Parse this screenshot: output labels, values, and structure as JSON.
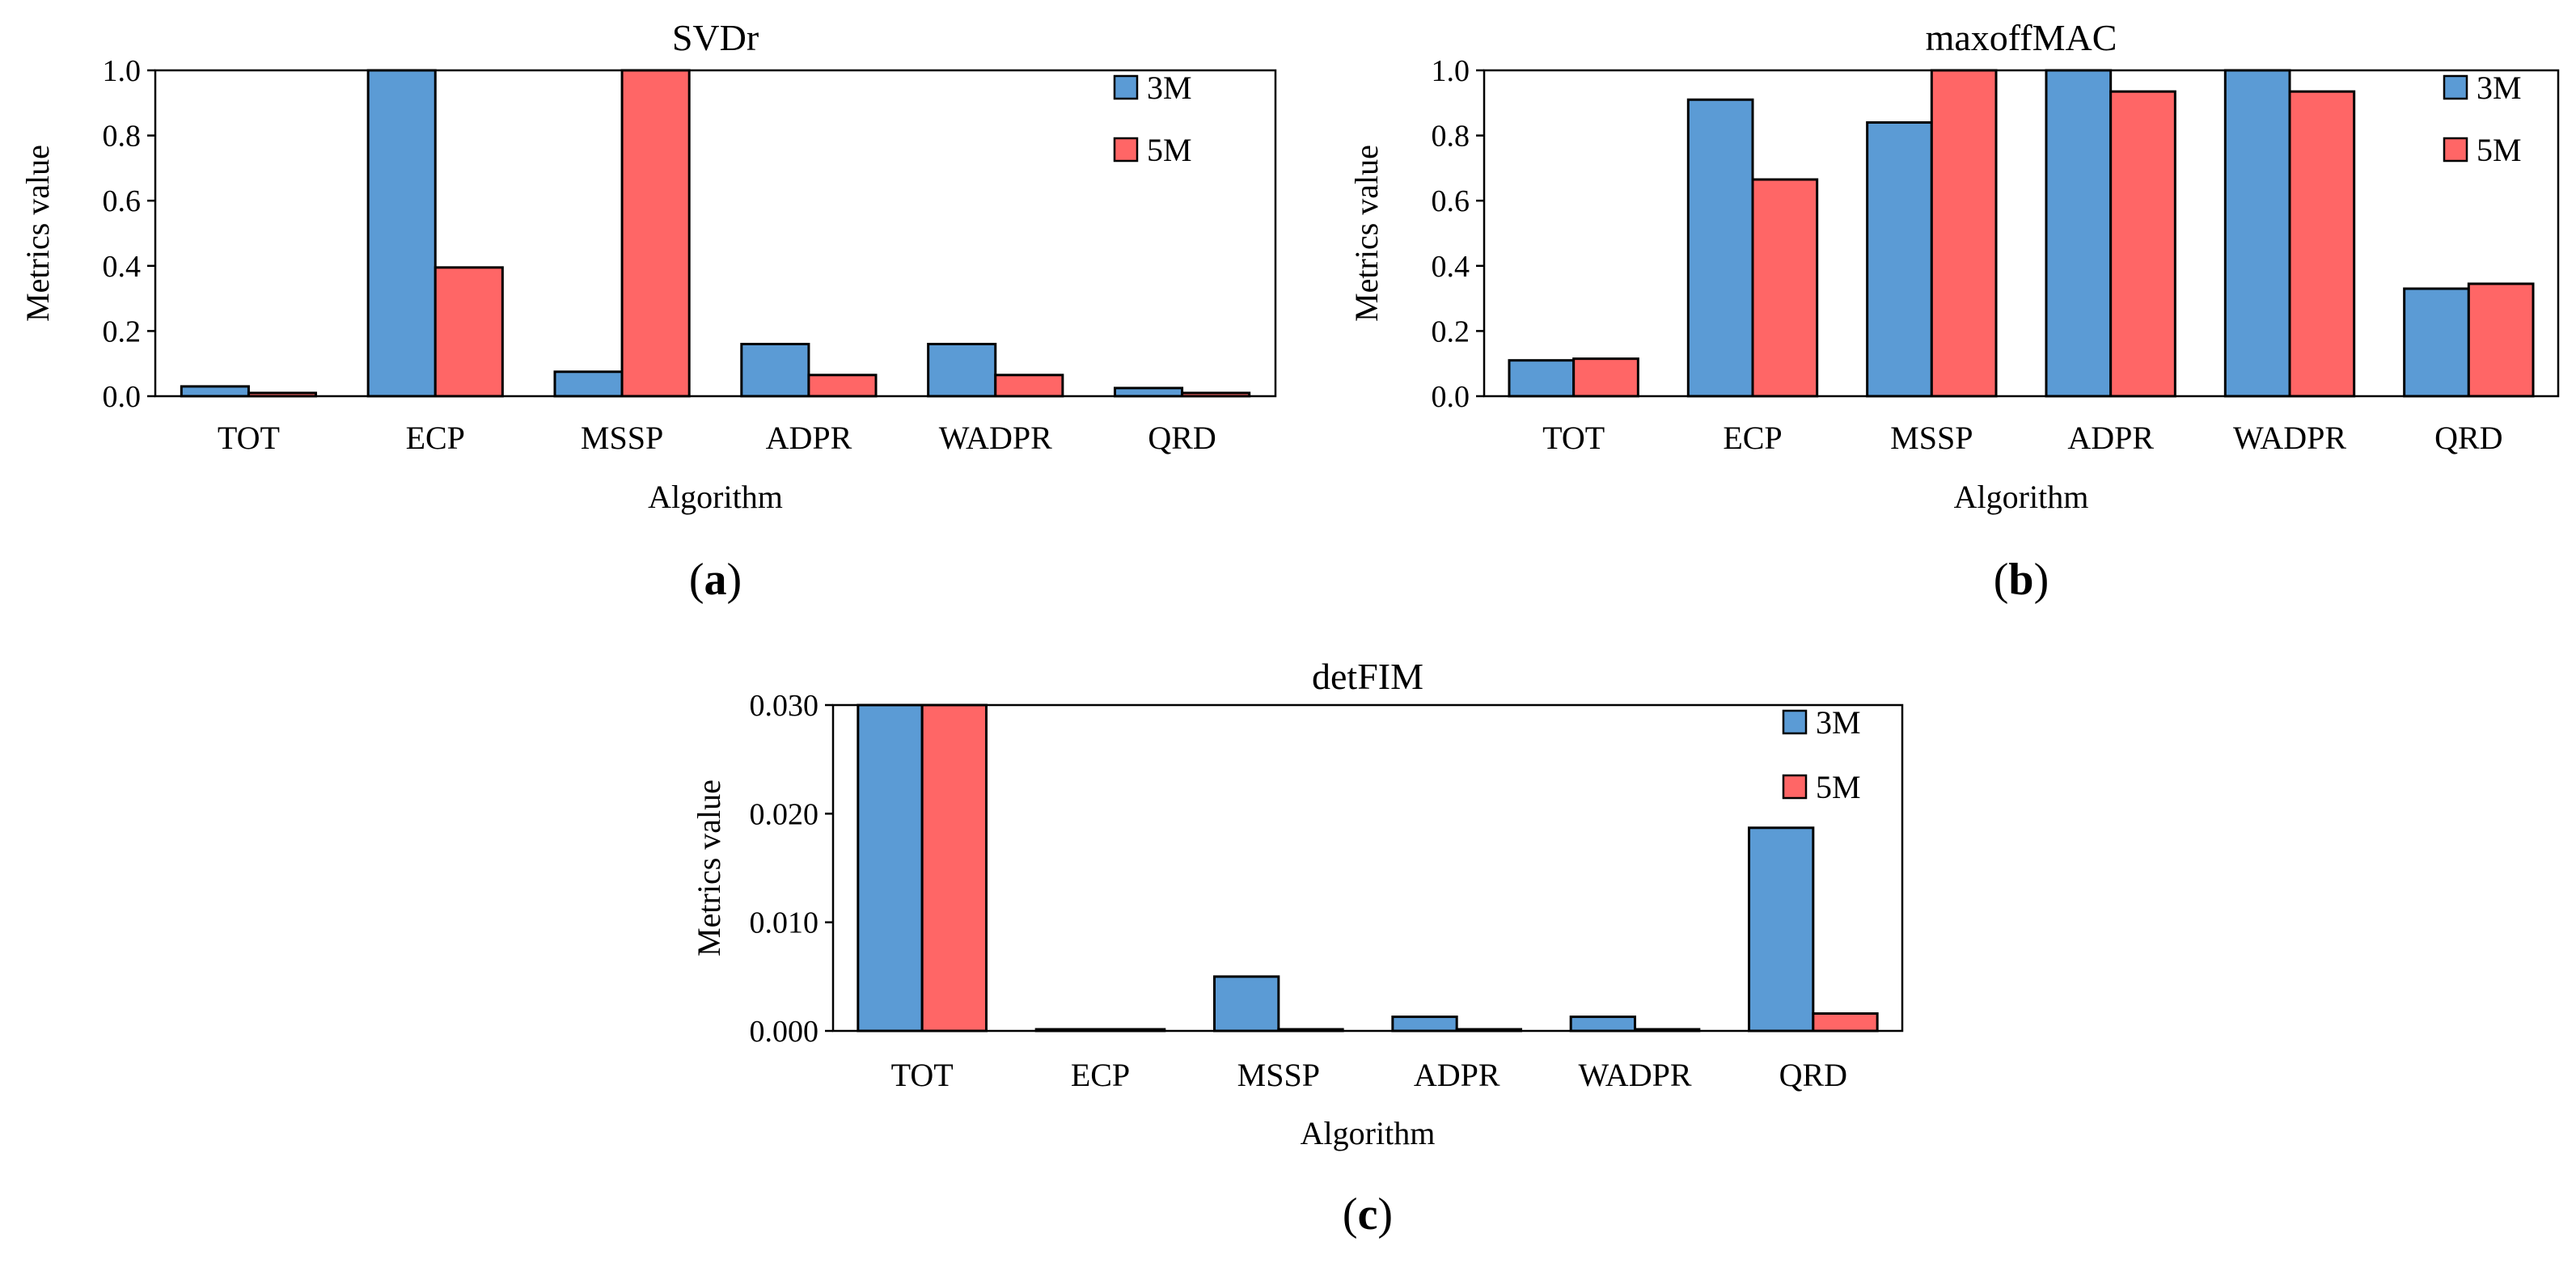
{
  "chart_data": [
    {
      "type": "bar",
      "panel_label": "a",
      "title": "SVDr",
      "xlabel": "Algorithm",
      "ylabel": "Metrics value",
      "categories": [
        "TOT",
        "ECP",
        "MSSP",
        "ADPR",
        "WADPR",
        "QRD"
      ],
      "ylim": [
        0,
        1.0
      ],
      "yticks": [
        "0.0",
        "0.2",
        "0.4",
        "0.6",
        "0.8",
        "1.0"
      ],
      "grid": false,
      "legend_position": "top-right",
      "series": [
        {
          "name": "3M",
          "color": "#5B9BD5",
          "values": [
            0.03,
            1.0,
            0.075,
            0.16,
            0.16,
            0.025
          ]
        },
        {
          "name": "5M",
          "color": "#FF6666",
          "values": [
            0.01,
            0.395,
            1.0,
            0.065,
            0.065,
            0.01
          ]
        }
      ]
    },
    {
      "type": "bar",
      "panel_label": "b",
      "title": "maxoffMAC",
      "xlabel": "Algorithm",
      "ylabel": "Metrics value",
      "categories": [
        "TOT",
        "ECP",
        "MSSP",
        "ADPR",
        "WADPR",
        "QRD"
      ],
      "ylim": [
        0,
        1.0
      ],
      "yticks": [
        "0.0",
        "0.2",
        "0.4",
        "0.6",
        "0.8",
        "1.0"
      ],
      "grid": false,
      "legend_position": "top-right",
      "series": [
        {
          "name": "3M",
          "color": "#5B9BD5",
          "values": [
            0.11,
            0.91,
            0.84,
            1.0,
            1.0,
            0.33
          ]
        },
        {
          "name": "5M",
          "color": "#FF6666",
          "values": [
            0.115,
            0.665,
            1.0,
            0.935,
            0.935,
            0.345
          ]
        }
      ]
    },
    {
      "type": "bar",
      "panel_label": "c",
      "title": "detFIM",
      "xlabel": "Algorithm",
      "ylabel": "Metrics value",
      "categories": [
        "TOT",
        "ECP",
        "MSSP",
        "ADPR",
        "WADPR",
        "QRD"
      ],
      "ylim": [
        0,
        0.03
      ],
      "yticks": [
        "0.000",
        "0.010",
        "0.020",
        "0.030"
      ],
      "grid": false,
      "legend_position": "top-right",
      "series": [
        {
          "name": "3M",
          "color": "#5B9BD5",
          "values": [
            0.03,
            0.0001,
            0.005,
            0.0013,
            0.0013,
            0.0187
          ]
        },
        {
          "name": "5M",
          "color": "#FF6666",
          "values": [
            0.03,
            0.0001,
            0.0001,
            0.0001,
            0.0001,
            0.0016
          ]
        }
      ]
    }
  ]
}
